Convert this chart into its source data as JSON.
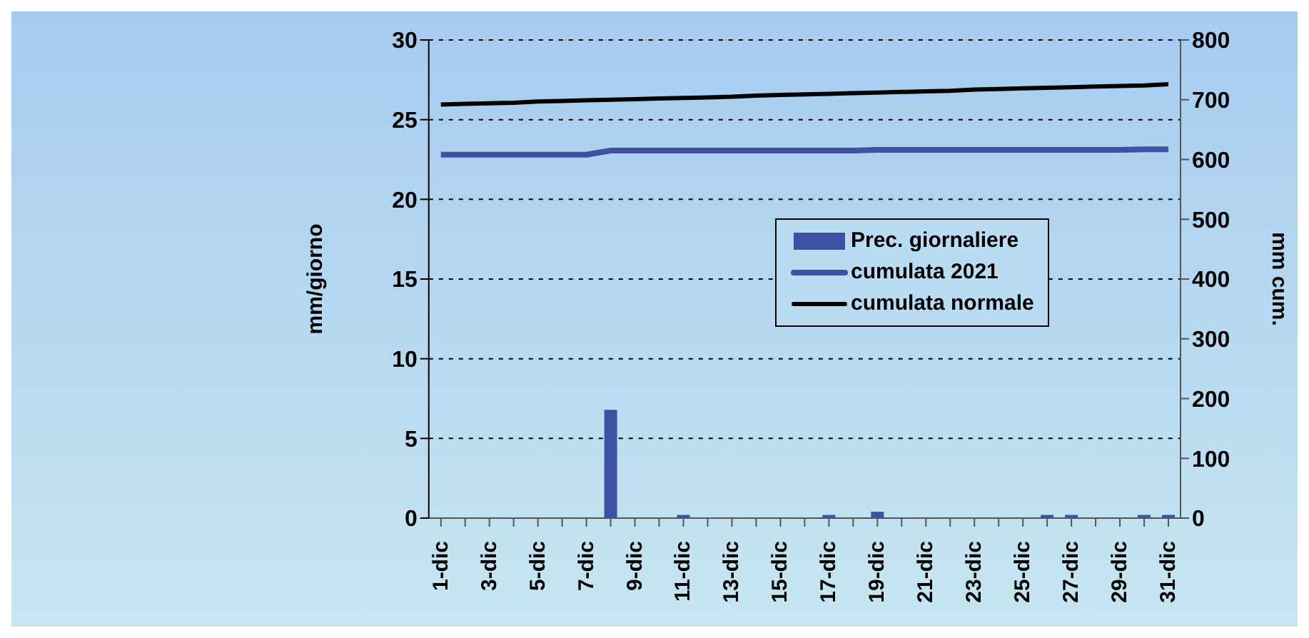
{
  "chart_data": {
    "type": "bar",
    "ylabel": "mm/giorno",
    "y2label": "mm cum.",
    "categories": [
      "1-dic",
      null,
      "3-dic",
      null,
      "5-dic",
      null,
      "7-dic",
      null,
      "9-dic",
      null,
      "11-dic",
      null,
      "13-dic",
      null,
      "15-dic",
      null,
      "17-dic",
      null,
      "19-dic",
      null,
      "21-dic",
      null,
      "23-dic",
      null,
      "25-dic",
      null,
      "27-dic",
      null,
      "29-dic",
      null,
      "31-dic"
    ],
    "series": [
      {
        "name": "Prec. giornaliere",
        "color": "#3f51a3",
        "values": [
          0,
          0,
          0,
          0,
          0,
          0,
          0,
          6.8,
          0,
          0,
          0.2,
          0,
          0,
          0,
          0,
          0,
          0.2,
          0,
          0.4,
          0,
          0,
          0,
          0,
          0,
          0,
          0.2,
          0.2,
          0,
          0,
          0.2,
          0.2
        ]
      },
      {
        "name": "cumulata 2021",
        "type": "line",
        "axis": "y2",
        "color": "#3f51a3",
        "values": [
          608,
          608,
          608,
          608,
          608,
          608,
          608,
          615,
          615,
          615,
          615,
          615,
          615,
          615,
          615,
          615,
          615,
          615,
          616,
          616,
          616,
          616,
          616,
          616,
          616,
          616,
          616,
          616,
          616,
          617,
          617
        ]
      },
      {
        "name": "cumulata normale",
        "type": "line",
        "axis": "y2",
        "color": "#000000",
        "values": [
          692,
          693,
          694,
          695,
          697,
          698,
          699,
          700,
          701,
          702,
          703,
          704,
          705,
          707,
          708,
          709,
          710,
          711,
          712,
          713,
          714,
          715,
          717,
          718,
          719,
          720,
          721,
          722,
          723,
          724,
          726
        ]
      }
    ],
    "ylim": [
      0,
      30
    ],
    "yticks": [
      0,
      5,
      10,
      15,
      20,
      25,
      30
    ],
    "y2lim": [
      0,
      800
    ],
    "y2ticks": [
      0,
      100,
      200,
      300,
      400,
      500,
      600,
      700,
      800
    ],
    "grid": "y",
    "legend": "right",
    "marker": "none"
  }
}
